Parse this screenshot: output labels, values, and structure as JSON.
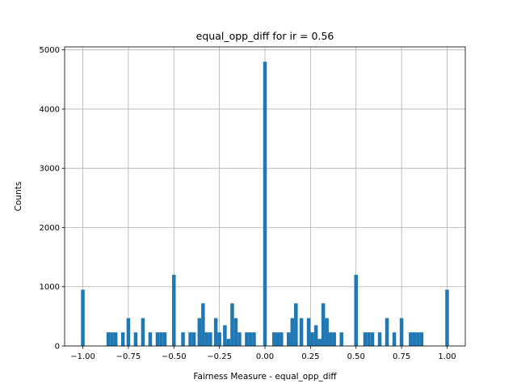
{
  "chart_data": {
    "type": "bar",
    "title": "equal_opp_diff for ir = 0.56",
    "xlabel": "Fairness Measure - equal_opp_diff",
    "ylabel": "Counts",
    "xlim": [
      -1.1,
      1.1
    ],
    "ylim": [
      0,
      5050
    ],
    "grid": true,
    "color": "#1f77b4",
    "bin_width": 0.02,
    "xticks": [
      -1.0,
      -0.75,
      -0.5,
      -0.25,
      0.0,
      0.25,
      0.5,
      0.75,
      1.0
    ],
    "xtick_labels": [
      "−1.00",
      "−0.75",
      "−0.50",
      "−0.25",
      "0.00",
      "0.25",
      "0.50",
      "0.75",
      "1.00"
    ],
    "yticks": [
      0,
      1000,
      2000,
      3000,
      4000,
      5000
    ],
    "ytick_labels": [
      "0",
      "1000",
      "2000",
      "3000",
      "4000",
      "5000"
    ],
    "bins": [
      {
        "x": -1.0,
        "count": 950
      },
      {
        "x": -0.86,
        "count": 230
      },
      {
        "x": -0.84,
        "count": 230
      },
      {
        "x": -0.82,
        "count": 230
      },
      {
        "x": -0.78,
        "count": 230
      },
      {
        "x": -0.75,
        "count": 470
      },
      {
        "x": -0.71,
        "count": 230
      },
      {
        "x": -0.67,
        "count": 470
      },
      {
        "x": -0.63,
        "count": 230
      },
      {
        "x": -0.59,
        "count": 230
      },
      {
        "x": -0.57,
        "count": 230
      },
      {
        "x": -0.55,
        "count": 230
      },
      {
        "x": -0.5,
        "count": 1200
      },
      {
        "x": -0.45,
        "count": 230
      },
      {
        "x": -0.41,
        "count": 230
      },
      {
        "x": -0.39,
        "count": 230
      },
      {
        "x": -0.36,
        "count": 470
      },
      {
        "x": -0.34,
        "count": 720
      },
      {
        "x": -0.32,
        "count": 230
      },
      {
        "x": -0.3,
        "count": 230
      },
      {
        "x": -0.27,
        "count": 470
      },
      {
        "x": -0.25,
        "count": 230
      },
      {
        "x": -0.22,
        "count": 350
      },
      {
        "x": -0.2,
        "count": 120
      },
      {
        "x": -0.18,
        "count": 720
      },
      {
        "x": -0.16,
        "count": 470
      },
      {
        "x": -0.14,
        "count": 230
      },
      {
        "x": -0.1,
        "count": 230
      },
      {
        "x": -0.08,
        "count": 230
      },
      {
        "x": -0.06,
        "count": 230
      },
      {
        "x": 0.0,
        "count": 4800
      },
      {
        "x": 0.05,
        "count": 230
      },
      {
        "x": 0.07,
        "count": 230
      },
      {
        "x": 0.09,
        "count": 230
      },
      {
        "x": 0.13,
        "count": 230
      },
      {
        "x": 0.15,
        "count": 470
      },
      {
        "x": 0.17,
        "count": 720
      },
      {
        "x": 0.2,
        "count": 470
      },
      {
        "x": 0.24,
        "count": 470
      },
      {
        "x": 0.26,
        "count": 230
      },
      {
        "x": 0.28,
        "count": 350
      },
      {
        "x": 0.3,
        "count": 120
      },
      {
        "x": 0.32,
        "count": 720
      },
      {
        "x": 0.34,
        "count": 470
      },
      {
        "x": 0.36,
        "count": 230
      },
      {
        "x": 0.38,
        "count": 230
      },
      {
        "x": 0.42,
        "count": 230
      },
      {
        "x": 0.5,
        "count": 1200
      },
      {
        "x": 0.55,
        "count": 230
      },
      {
        "x": 0.57,
        "count": 230
      },
      {
        "x": 0.59,
        "count": 230
      },
      {
        "x": 0.63,
        "count": 230
      },
      {
        "x": 0.67,
        "count": 470
      },
      {
        "x": 0.71,
        "count": 230
      },
      {
        "x": 0.75,
        "count": 470
      },
      {
        "x": 0.8,
        "count": 230
      },
      {
        "x": 0.82,
        "count": 230
      },
      {
        "x": 0.84,
        "count": 230
      },
      {
        "x": 0.86,
        "count": 230
      },
      {
        "x": 1.0,
        "count": 950
      }
    ]
  }
}
